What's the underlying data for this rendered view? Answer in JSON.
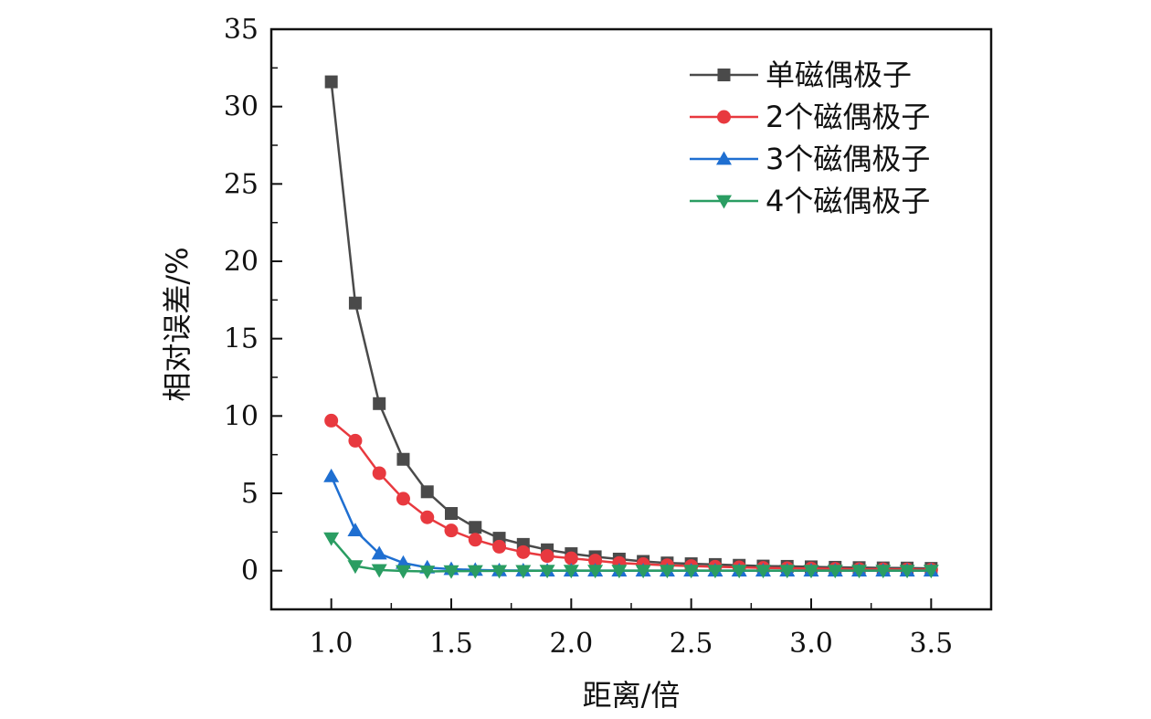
{
  "chart_data": {
    "type": "line",
    "xlabel": "距离/倍",
    "ylabel": "相对误差/%",
    "xlim": [
      0.75,
      3.75
    ],
    "ylim": [
      -2.5,
      35
    ],
    "x_ticks": [
      "1.0",
      "1.5",
      "2.0",
      "2.5",
      "3.0",
      "3.5"
    ],
    "y_ticks": [
      "0",
      "5",
      "10",
      "15",
      "20",
      "25",
      "30",
      "35"
    ],
    "legend_position": "top-right",
    "grid": false,
    "x": [
      1.0,
      1.1,
      1.2,
      1.3,
      1.4,
      1.5,
      1.6,
      1.7,
      1.8,
      1.9,
      2.0,
      2.1,
      2.2,
      2.3,
      2.4,
      2.5,
      2.6,
      2.7,
      2.8,
      2.9,
      3.0,
      3.1,
      3.2,
      3.3,
      3.4,
      3.5
    ],
    "series": [
      {
        "name": "单磁偶极子",
        "color": "#4a4a4a",
        "marker": "square",
        "values": [
          31.6,
          17.3,
          10.8,
          7.2,
          5.1,
          3.7,
          2.8,
          2.1,
          1.7,
          1.35,
          1.1,
          0.9,
          0.75,
          0.6,
          0.5,
          0.45,
          0.4,
          0.35,
          0.3,
          0.28,
          0.25,
          0.22,
          0.2,
          0.18,
          0.17,
          0.15
        ]
      },
      {
        "name": "2个磁偶极子",
        "color": "#e8393f",
        "marker": "circle",
        "values": [
          9.7,
          8.4,
          6.3,
          4.65,
          3.45,
          2.6,
          2.0,
          1.55,
          1.2,
          0.95,
          0.8,
          0.65,
          0.5,
          0.42,
          0.35,
          0.3,
          0.25,
          0.22,
          0.18,
          0.16,
          0.14,
          0.12,
          0.1,
          0.09,
          0.08,
          0.07
        ]
      },
      {
        "name": "3个磁偶极子",
        "color": "#1f6fd1",
        "marker": "triangle-up",
        "values": [
          6.1,
          2.6,
          1.1,
          0.5,
          0.2,
          0.1,
          0.05,
          0.02,
          0.01,
          0.0,
          0.0,
          0.0,
          0.0,
          0.0,
          0.0,
          0.0,
          0.0,
          0.0,
          0.0,
          0.0,
          0.0,
          0.0,
          0.0,
          0.0,
          0.0,
          0.0
        ]
      },
      {
        "name": "4个磁偶极子",
        "color": "#2a9d62",
        "marker": "triangle-down",
        "values": [
          2.1,
          0.3,
          0.05,
          -0.02,
          -0.05,
          -0.03,
          -0.02,
          -0.01,
          -0.01,
          0.0,
          0.0,
          0.0,
          0.0,
          0.0,
          0.0,
          0.0,
          0.0,
          0.0,
          0.0,
          0.0,
          0.0,
          0.0,
          0.0,
          0.0,
          0.0,
          0.0
        ]
      }
    ]
  }
}
